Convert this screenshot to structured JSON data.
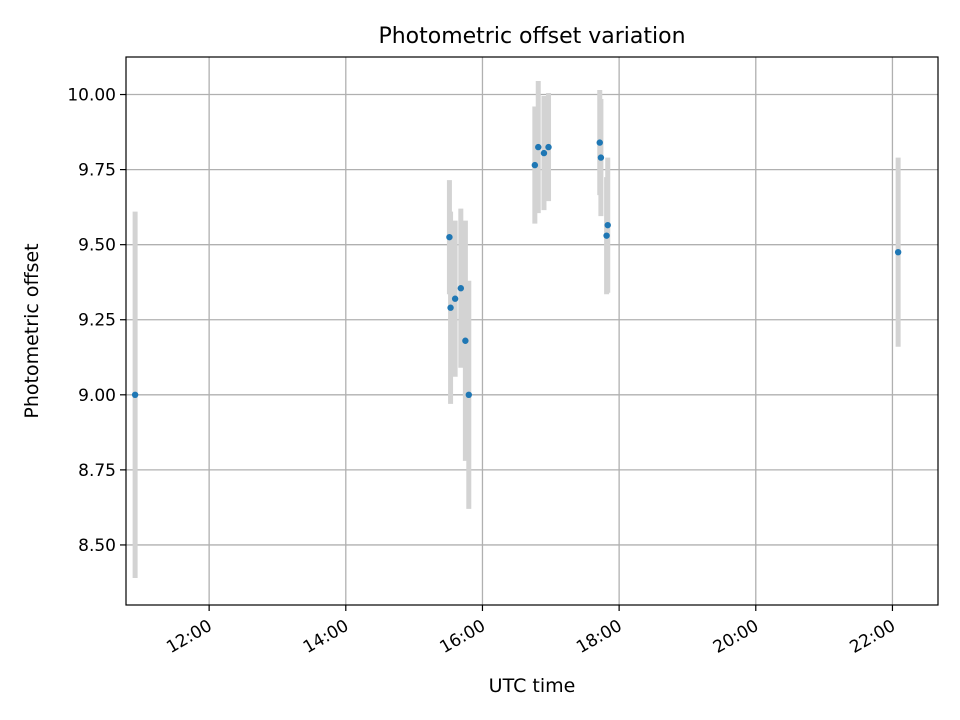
{
  "chart_data": {
    "type": "scatter",
    "title": "Photometric offset variation",
    "xlabel": "UTC time",
    "ylabel": "Photometric offset",
    "x_unit": "hour",
    "xlim": [
      "10:47",
      "22:40"
    ],
    "ylim": [
      8.3,
      10.125
    ],
    "x_ticks": [
      "12:00",
      "14:00",
      "16:00",
      "18:00",
      "20:00",
      "22:00"
    ],
    "y_ticks": [
      8.5,
      8.75,
      9.0,
      9.25,
      9.5,
      9.75,
      10.0
    ],
    "y_tick_labels": [
      "8.50",
      "8.75",
      "9.00",
      "9.25",
      "9.50",
      "9.75",
      "10.00"
    ],
    "grid": true,
    "colors": {
      "point": "#1f77b4",
      "errorbar": "#d3d3d3",
      "grid": "#b0b0b0"
    },
    "points": [
      {
        "x": "10:55",
        "y": 9.0,
        "err": 0.61
      },
      {
        "x": "15:31",
        "y": 9.525,
        "err": 0.19
      },
      {
        "x": "15:32",
        "y": 9.29,
        "err": 0.32
      },
      {
        "x": "15:36",
        "y": 9.32,
        "err": 0.26
      },
      {
        "x": "15:41",
        "y": 9.355,
        "err": 0.265
      },
      {
        "x": "15:45",
        "y": 9.18,
        "err": 0.4
      },
      {
        "x": "15:48",
        "y": 9.0,
        "err": 0.38
      },
      {
        "x": "16:46",
        "y": 9.765,
        "err": 0.195
      },
      {
        "x": "16:49",
        "y": 9.825,
        "err": 0.22
      },
      {
        "x": "16:54",
        "y": 9.805,
        "err": 0.19
      },
      {
        "x": "16:58",
        "y": 9.825,
        "err": 0.18
      },
      {
        "x": "17:43",
        "y": 9.84,
        "err": 0.175
      },
      {
        "x": "17:44",
        "y": 9.79,
        "err": 0.195
      },
      {
        "x": "17:49",
        "y": 9.53,
        "err": 0.195
      },
      {
        "x": "17:50",
        "y": 9.565,
        "err": 0.225
      },
      {
        "x": "22:05",
        "y": 9.475,
        "err": 0.315
      }
    ]
  }
}
